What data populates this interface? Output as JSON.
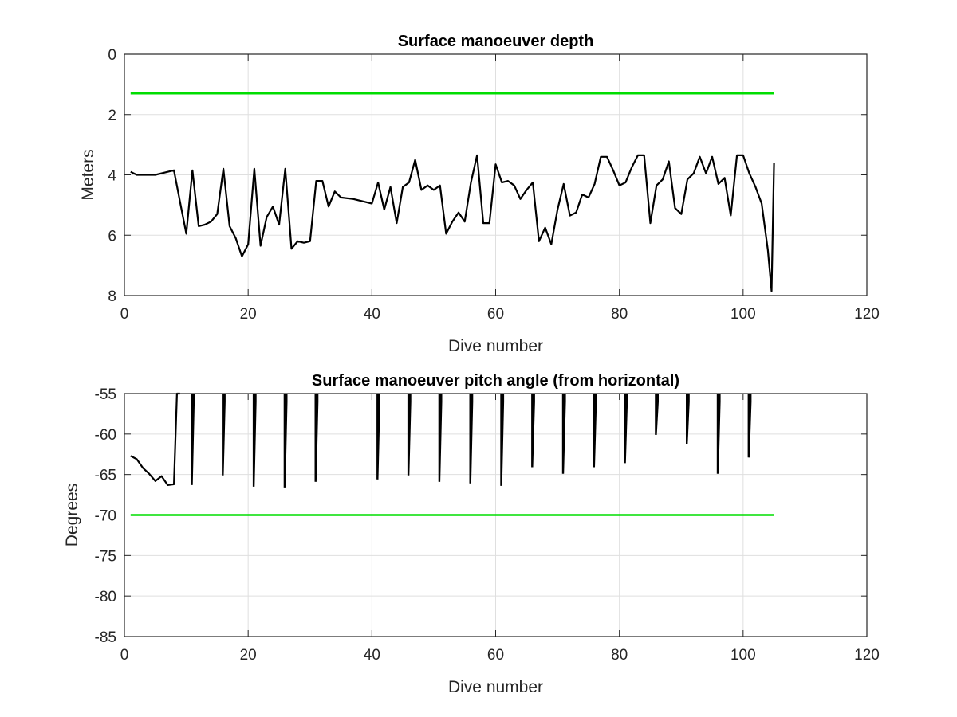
{
  "chart_data": [
    {
      "type": "line",
      "title": "Surface manoeuver depth",
      "xlabel": "Dive number",
      "ylabel": "Meters",
      "xlim": [
        0,
        120
      ],
      "ylim": [
        0,
        8
      ],
      "y_reversed": true,
      "xticks": [
        "0",
        "20",
        "40",
        "60",
        "80",
        "100",
        "120"
      ],
      "yticks": [
        "0",
        "2",
        "4",
        "6",
        "8"
      ],
      "grid": true,
      "series": [
        {
          "color": "#000000",
          "points": [
            [
              1,
              3.9
            ],
            [
              2,
              4.0
            ],
            [
              3,
              4.0
            ],
            [
              4,
              4.0
            ],
            [
              5,
              4.0
            ],
            [
              6,
              3.95
            ],
            [
              7,
              3.9
            ],
            [
              8,
              3.85
            ],
            [
              9,
              4.9
            ],
            [
              10,
              5.95
            ],
            [
              11,
              3.85
            ],
            [
              12,
              5.7
            ],
            [
              13,
              5.65
            ],
            [
              14,
              5.55
            ],
            [
              15,
              5.3
            ],
            [
              16,
              3.8
            ],
            [
              17,
              5.7
            ],
            [
              18,
              6.1
            ],
            [
              19,
              6.7
            ],
            [
              20,
              6.3
            ],
            [
              21,
              3.8
            ],
            [
              22,
              6.35
            ],
            [
              23,
              5.4
            ],
            [
              24,
              5.05
            ],
            [
              25,
              5.65
            ],
            [
              26,
              3.8
            ],
            [
              27,
              6.45
            ],
            [
              28,
              6.2
            ],
            [
              29,
              6.25
            ],
            [
              30,
              6.2
            ],
            [
              31,
              4.2
            ],
            [
              32,
              4.2
            ],
            [
              33,
              5.05
            ],
            [
              34,
              4.55
            ],
            [
              35,
              4.75
            ],
            [
              37,
              4.8
            ],
            [
              40,
              4.95
            ],
            [
              41,
              4.25
            ],
            [
              42,
              5.15
            ],
            [
              43,
              4.4
            ],
            [
              44,
              5.6
            ],
            [
              45,
              4.4
            ],
            [
              46,
              4.25
            ],
            [
              47,
              3.5
            ],
            [
              48,
              4.5
            ],
            [
              49,
              4.35
            ],
            [
              50,
              4.5
            ],
            [
              51,
              4.35
            ],
            [
              52,
              5.95
            ],
            [
              53,
              5.55
            ],
            [
              54,
              5.25
            ],
            [
              55,
              5.55
            ],
            [
              56,
              4.25
            ],
            [
              57,
              3.35
            ],
            [
              58,
              5.6
            ],
            [
              59,
              5.6
            ],
            [
              60,
              3.65
            ],
            [
              61,
              4.25
            ],
            [
              62,
              4.2
            ],
            [
              63,
              4.35
            ],
            [
              64,
              4.8
            ],
            [
              65,
              4.5
            ],
            [
              66,
              4.25
            ],
            [
              67,
              6.2
            ],
            [
              68,
              5.75
            ],
            [
              69,
              6.3
            ],
            [
              70,
              5.15
            ],
            [
              71,
              4.3
            ],
            [
              72,
              5.35
            ],
            [
              73,
              5.25
            ],
            [
              74,
              4.65
            ],
            [
              75,
              4.75
            ],
            [
              76,
              4.3
            ],
            [
              77,
              3.4
            ],
            [
              78,
              3.4
            ],
            [
              79,
              3.85
            ],
            [
              80,
              4.35
            ],
            [
              81,
              4.25
            ],
            [
              82,
              3.75
            ],
            [
              83,
              3.35
            ],
            [
              84,
              3.35
            ],
            [
              85,
              5.6
            ],
            [
              86,
              4.35
            ],
            [
              87,
              4.15
            ],
            [
              88,
              3.55
            ],
            [
              89,
              5.1
            ],
            [
              90,
              5.3
            ],
            [
              91,
              4.15
            ],
            [
              92,
              3.95
            ],
            [
              93,
              3.4
            ],
            [
              94,
              3.95
            ],
            [
              95,
              3.4
            ],
            [
              96,
              4.3
            ],
            [
              97,
              4.1
            ],
            [
              98,
              5.35
            ],
            [
              99,
              3.35
            ],
            [
              100,
              3.35
            ],
            [
              101,
              3.95
            ],
            [
              102,
              4.4
            ],
            [
              103,
              4.95
            ],
            [
              104,
              6.5
            ],
            [
              104.6,
              7.85
            ],
            [
              105,
              3.6
            ]
          ]
        },
        {
          "color": "#00dd00",
          "points": [
            [
              1,
              1.3
            ],
            [
              105,
              1.3
            ]
          ]
        }
      ]
    },
    {
      "type": "line",
      "title": "Surface manoeuver pitch angle (from horizontal)",
      "xlabel": "Dive number",
      "ylabel": "Degrees",
      "xlim": [
        0,
        120
      ],
      "ylim": [
        -85,
        -55
      ],
      "xticks": [
        "0",
        "20",
        "40",
        "60",
        "80",
        "100",
        "120"
      ],
      "yticks": [
        "-55",
        "-60",
        "-65",
        "-70",
        "-75",
        "-80",
        "-85"
      ],
      "grid": true,
      "series": [
        {
          "color": "#000000",
          "points": [
            [
              1,
              -62.7
            ],
            [
              2,
              -63.1
            ],
            [
              3,
              -64.2
            ],
            [
              4,
              -64.9
            ],
            [
              5,
              -65.8
            ],
            [
              6,
              -65.2
            ],
            [
              7,
              -66.3
            ],
            [
              8,
              -66.2
            ],
            [
              8.5,
              -55
            ],
            [
              8.6,
              -55
            ],
            [
              9,
              -55
            ]
          ],
          "spikes": [
            [
              11,
              -66.3
            ],
            [
              16,
              -65.1
            ],
            [
              21,
              -66.5
            ],
            [
              26,
              -66.6
            ],
            [
              31,
              -65.9
            ],
            [
              41,
              -65.6
            ],
            [
              46,
              -65.1
            ],
            [
              51,
              -65.9
            ],
            [
              56,
              -66.1
            ],
            [
              61,
              -66.4
            ],
            [
              66,
              -64.1
            ],
            [
              71,
              -64.9
            ],
            [
              76,
              -64.1
            ],
            [
              81,
              -63.6
            ],
            [
              86,
              -60.1
            ],
            [
              91,
              -61.2
            ],
            [
              96,
              -64.9
            ],
            [
              101,
              -62.9
            ]
          ]
        },
        {
          "color": "#00dd00",
          "points": [
            [
              1,
              -70
            ],
            [
              105,
              -70
            ]
          ]
        }
      ]
    }
  ]
}
